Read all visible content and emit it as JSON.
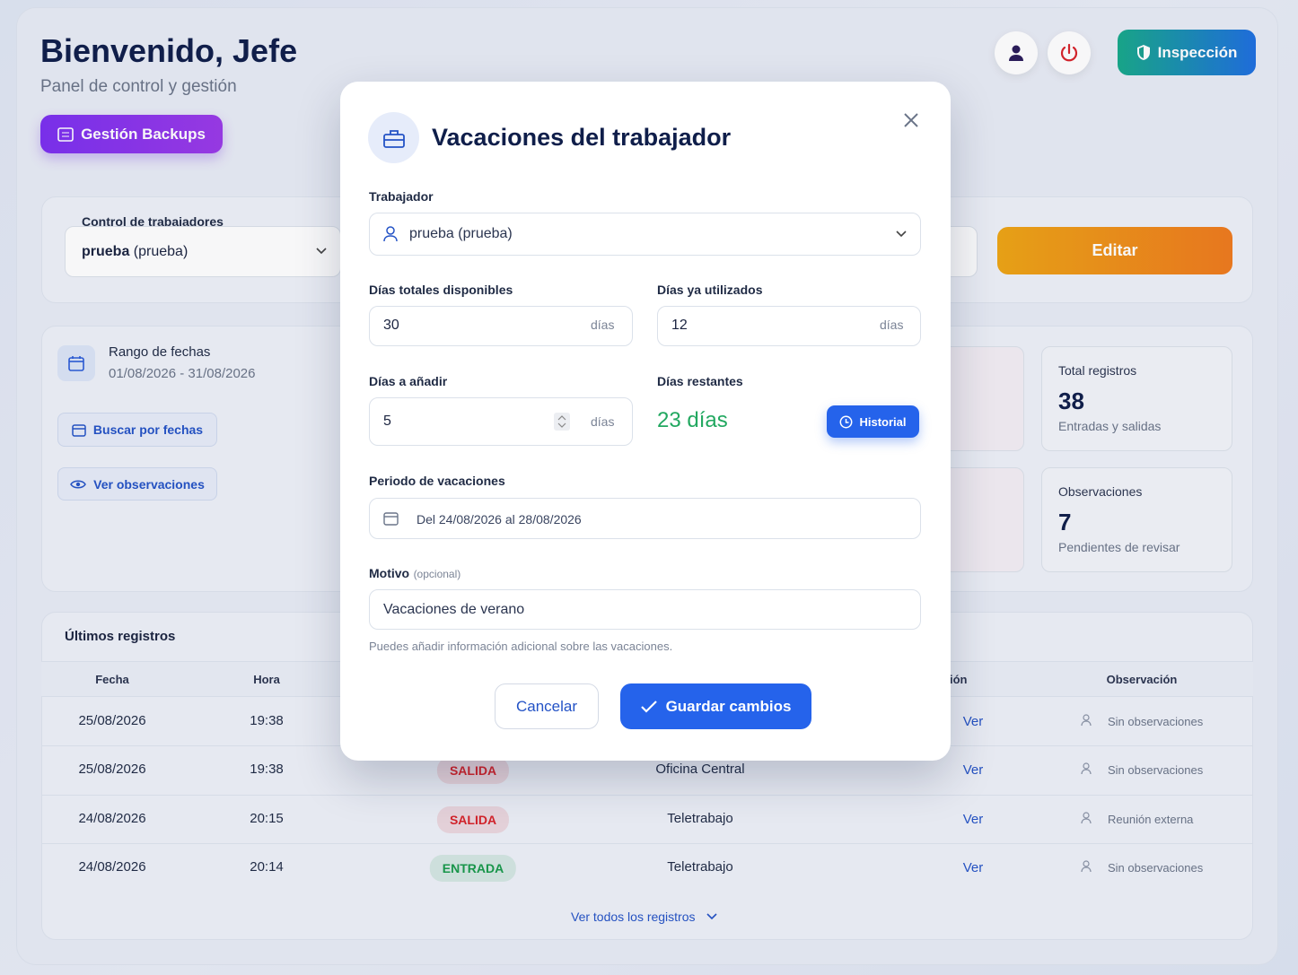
{
  "header": {
    "title": "Bienvenido, Jefe",
    "subtitle": "Panel de control y gestión",
    "backup_button": "Gestión Backups",
    "inspection_button": "Inspección"
  },
  "control": {
    "label": "Control de trabajadores",
    "worker_name": "prueba",
    "worker_user": "(prueba)",
    "edit_button": "Editar"
  },
  "filters": {
    "range_label": "Rango de fechas",
    "range_value": "01/08/2026 - 31/08/2026",
    "search_button": "Buscar por fechas",
    "observations_button": "Ver observaciones"
  },
  "stats": [
    {
      "label": "Total registros",
      "value": 38,
      "note": "Entradas y salidas"
    },
    {
      "label": "Observaciones",
      "value": 7,
      "note": "Pendientes de revisar"
    }
  ],
  "records": {
    "title": "Últimos registros",
    "columns": [
      "Fecha",
      "Hora",
      null,
      null,
      "ión",
      "Observación"
    ],
    "rows": [
      {
        "date": "25/08/2026",
        "time": "19:38",
        "type": null,
        "type_color": null,
        "location": null,
        "action": "Ver",
        "observation": "Sin observaciones"
      },
      {
        "date": "25/08/2026",
        "time": "19:38",
        "type": "SALIDA",
        "type_color": "#d8232a",
        "location": "Oficina Central",
        "action": "Ver",
        "observation": "Sin observaciones"
      },
      {
        "date": "24/08/2026",
        "time": "20:15",
        "type": "SALIDA",
        "type_color": "#d8232a",
        "location": "Teletrabajo",
        "action": "Ver",
        "observation": "Reunión externa"
      },
      {
        "date": "24/08/2026",
        "time": "20:14",
        "type": "ENTRADA",
        "type_color": "#17994a",
        "location": "Teletrabajo",
        "action": "Ver",
        "observation": "Sin observaciones"
      }
    ],
    "footer_link": "Ver todos los registros"
  },
  "modal": {
    "title": "Vacaciones del trabajador",
    "worker_label": "Trabajador",
    "worker_value": "prueba (prueba)",
    "total_label": "Días totales disponibles",
    "total_value": 30,
    "unit": "días",
    "used_label": "Días ya utilizados",
    "used_value": 12,
    "add_label": "Días a añadir",
    "add_value": 5,
    "remaining_label": "Días restantes",
    "remaining_value": "23 días",
    "history_button": "Historial",
    "period_label": "Periodo de vacaciones",
    "period_value": "Del 24/08/2026 al 28/08/2026",
    "reason_label": "Motivo",
    "reason_optional": "(opcional)",
    "reason_value": "Vacaciones de verano",
    "reason_hint": "Puedes añadir información adicional sobre las vacaciones.",
    "cancel_button": "Cancelar",
    "save_button": "Guardar cambios"
  }
}
